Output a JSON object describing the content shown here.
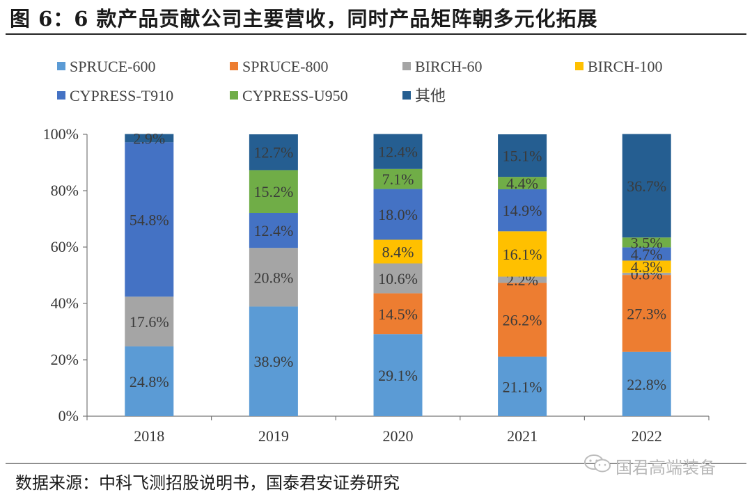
{
  "title": "图 6：6 款产品贡献公司主要营收，同时产品矩阵朝多元化拓展",
  "source": "数据来源：中科飞测招股说明书，国泰君安证券研究",
  "watermark": "国君高端装备",
  "chart_data": {
    "type": "bar",
    "stacked": true,
    "title": "",
    "xlabel": "",
    "ylabel": "",
    "ylim": [
      0,
      100
    ],
    "yticks": [
      "0%",
      "20%",
      "40%",
      "60%",
      "80%",
      "100%"
    ],
    "categories": [
      "2018",
      "2019",
      "2020",
      "2021",
      "2022"
    ],
    "series": [
      {
        "name": "SPRUCE-600",
        "color": "#5B9BD5",
        "values": [
          24.8,
          38.9,
          29.1,
          21.1,
          22.8
        ],
        "labels": [
          "24.8%",
          "38.9%",
          "29.1%",
          "21.1%",
          "22.8%"
        ]
      },
      {
        "name": "SPRUCE-800",
        "color": "#ED7D31",
        "values": [
          0,
          0,
          14.5,
          26.2,
          27.3
        ],
        "labels": [
          "",
          "",
          "14.5%",
          "26.2%",
          "27.3%"
        ]
      },
      {
        "name": "BIRCH-60",
        "color": "#A5A5A5",
        "values": [
          17.6,
          20.8,
          10.6,
          2.2,
          0.8
        ],
        "labels": [
          "17.6%",
          "20.8%",
          "10.6%",
          "2.2%",
          "0.8%"
        ]
      },
      {
        "name": "BIRCH-100",
        "color": "#FFC000",
        "values": [
          0,
          0,
          8.4,
          16.1,
          4.3
        ],
        "labels": [
          "",
          "",
          "8.4%",
          "16.1%",
          "4.3%"
        ]
      },
      {
        "name": "CYPRESS-T910",
        "color": "#4472C4",
        "values": [
          54.8,
          12.4,
          18.0,
          14.9,
          4.7
        ],
        "labels": [
          "54.8%",
          "12.4%",
          "18.0%",
          "14.9%",
          "4.7%"
        ]
      },
      {
        "name": "CYPRESS-U950",
        "color": "#70AD47",
        "values": [
          0,
          15.2,
          7.1,
          4.4,
          3.5
        ],
        "labels": [
          "",
          "15.2%",
          "7.1%",
          "4.4%",
          "3.5%"
        ]
      },
      {
        "name": "其他",
        "color": "#255E91",
        "values": [
          2.9,
          12.7,
          12.4,
          15.1,
          36.7
        ],
        "labels": [
          "2.9%",
          "12.7%",
          "12.4%",
          "15.1%",
          "36.7%"
        ]
      }
    ],
    "legend_position": "top"
  }
}
